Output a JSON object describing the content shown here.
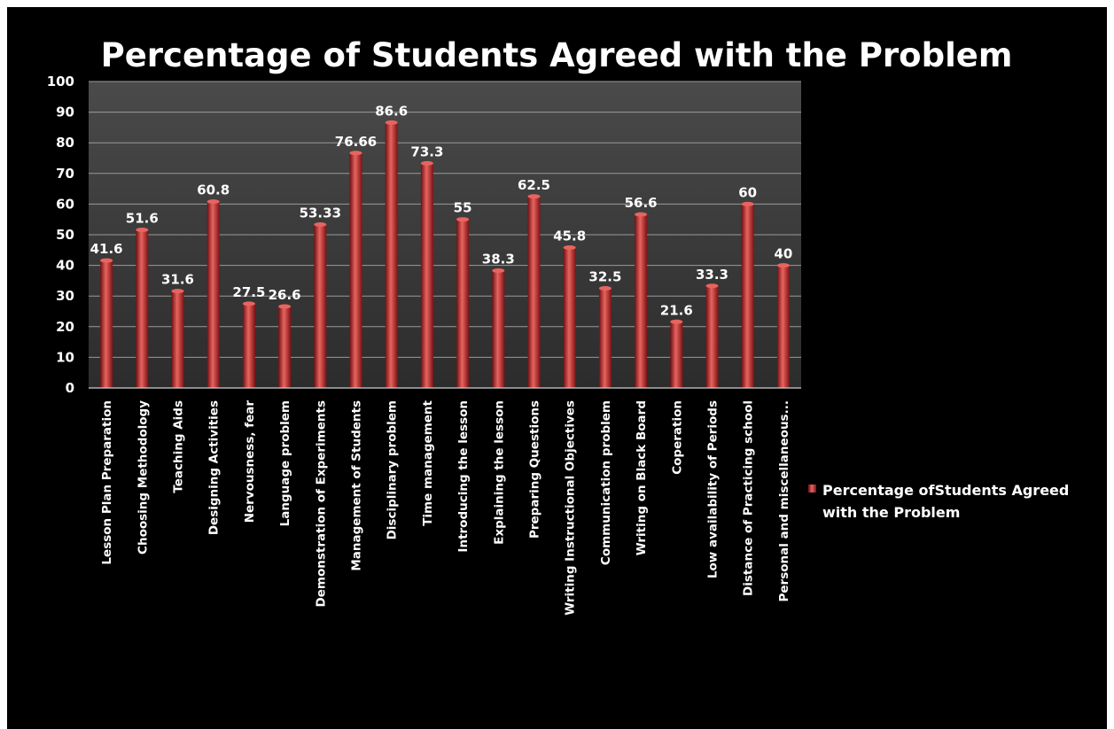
{
  "chart_data": {
    "type": "bar",
    "title": "Percentage of Students Agreed with the Problem",
    "xlabel": "",
    "ylabel": "",
    "ylim": [
      0,
      100
    ],
    "yticks": [
      0,
      10,
      20,
      30,
      40,
      50,
      60,
      70,
      80,
      90,
      100
    ],
    "grid": true,
    "legend_position": "right",
    "colors": {
      "bar": "#c0262a",
      "bar_dark": "#6e0f12",
      "bar_light": "#e8645f",
      "plot_bg": "#3a3a3a",
      "background": "#000000",
      "gridline": "#9a9a9a",
      "text": "#ffffff"
    },
    "categories": [
      "Lesson Plan Preparation",
      "Choosing Methodology",
      "Teaching Aids",
      "Designing Activities",
      "Nervousness, fear",
      "Language problem",
      "Demonstration of Experiments",
      "Management of Students",
      "Disciplinary problem",
      "Time management",
      "Introducing the lesson",
      "Explaining the lesson",
      "Preparing Questions",
      "Writing Instructional Objectives",
      "Communication problem",
      "Writing on Black Board",
      "Coperation",
      "Low availability of Periods",
      "Distance of Practicing school",
      "Personal and miscellaneous..."
    ],
    "series": [
      {
        "name": "Percentage ofStudents Agreed with the Problem",
        "legend_lines": [
          "Percentage ofStudents Agreed",
          "with the Problem"
        ],
        "values": [
          41.6,
          51.6,
          31.6,
          60.8,
          27.5,
          26.6,
          53.33,
          76.66,
          86.6,
          73.3,
          55,
          38.3,
          62.5,
          45.8,
          32.5,
          56.6,
          21.6,
          33.3,
          60,
          40
        ],
        "labels": [
          "41.6",
          "51.6",
          "31.6",
          "60.8",
          "27.5",
          "26.6",
          "53.33",
          "76.66",
          "86.6",
          "73.3",
          "55",
          "38.3",
          "62.5",
          "45.8",
          "32.5",
          "56.6",
          "21.6",
          "33.3",
          "60",
          "40"
        ]
      }
    ]
  }
}
